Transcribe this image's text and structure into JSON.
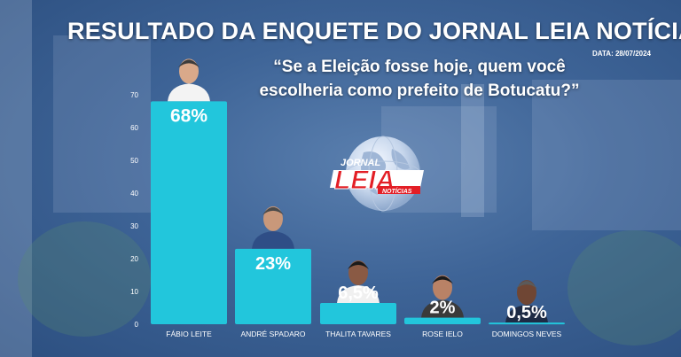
{
  "header": {
    "title": "RESULTADO DA ENQUETE DO JORNAL LEIA NOTÍCIAS",
    "date": "DATA: 28/07/2024",
    "question": "“Se a Eleição fosse hoje, quem você escolheria como prefeito de Botucatu?”"
  },
  "logo": {
    "top_text": "JORNAL",
    "main_text": "LEIA",
    "sub_text": "NOTÍCIAS"
  },
  "colors": {
    "bar": "#22c6dc",
    "logo_red": "#e31f26",
    "text": "#ffffff"
  },
  "chart_data": {
    "type": "bar",
    "categories": [
      "FÁBIO LEITE",
      "ANDRÉ SPADARO",
      "THALITA TAVARES",
      "ROSE IELO",
      "DOMINGOS NEVES"
    ],
    "values": [
      68,
      23,
      6.5,
      2,
      0.5
    ],
    "value_labels": [
      "68%",
      "23%",
      "6,5%",
      "2%",
      "0,5%"
    ],
    "yticks": [
      "0",
      "10",
      "20",
      "30",
      "40",
      "50",
      "60",
      "70"
    ],
    "ylim": [
      0,
      70
    ],
    "grid": false,
    "legend": "none"
  }
}
